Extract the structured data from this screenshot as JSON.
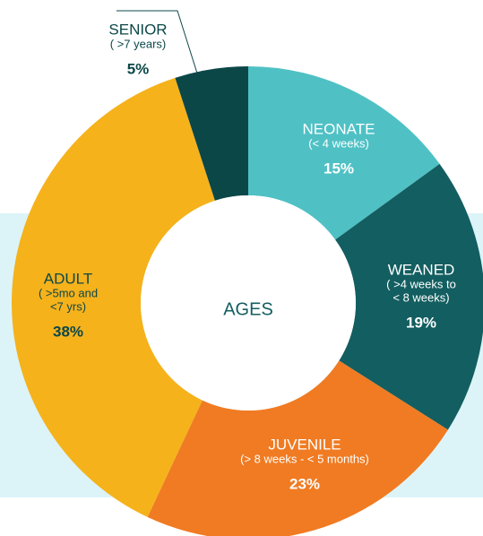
{
  "chart_data": {
    "type": "donut",
    "center_label": "AGES",
    "categories": [
      "NEONATE",
      "WEANED",
      "JUVENILE",
      "ADULT",
      "SENIOR"
    ],
    "descriptions": [
      [
        "(< 4 weeks)"
      ],
      [
        "( >4 weeks to",
        "< 8 weeks)"
      ],
      [
        "(> 8 weeks - < 5 months)"
      ],
      [
        "( >5mo and",
        "<7 yrs)"
      ],
      [
        "( >7 years)"
      ]
    ],
    "values": [
      15,
      19,
      23,
      38,
      5
    ],
    "value_labels": [
      "15%",
      "19%",
      "23%",
      "38%",
      "5%"
    ],
    "colors": [
      "#4fc1c5",
      "#135e60",
      "#f07b22",
      "#f5b21b",
      "#0c4748"
    ]
  }
}
